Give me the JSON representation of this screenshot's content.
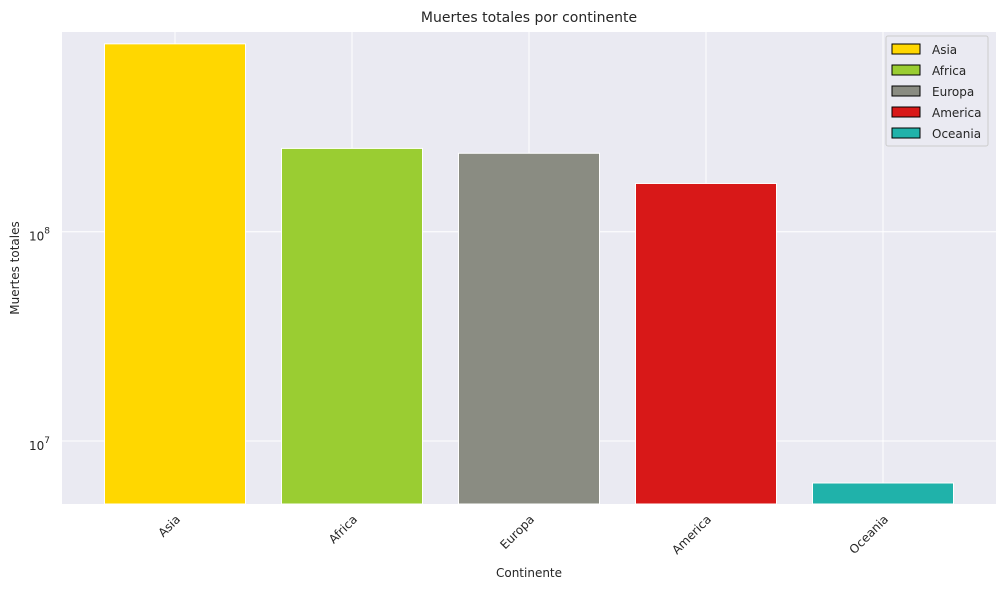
{
  "chart_data": {
    "type": "bar",
    "title": "Muertes totales por continente",
    "xlabel": "Continente",
    "ylabel": "Muertes totales",
    "y_scale": "log",
    "ylim": [
      5000000,
      900000000
    ],
    "categories": [
      "Asia",
      "Africa",
      "Europa",
      "America",
      "Oceania"
    ],
    "values": [
      790000000,
      250000000,
      237000000,
      170000000,
      6300000
    ],
    "colors": [
      "#FFD700",
      "#9ACD32",
      "#8A8C82",
      "#D81818",
      "#20B2AA"
    ],
    "y_ticks": [
      {
        "value": 10000000,
        "base": "10",
        "exp": "7"
      },
      {
        "value": 100000000,
        "base": "10",
        "exp": "8"
      }
    ],
    "legend": {
      "position": "top-right",
      "entries": [
        "Asia",
        "Africa",
        "Europa",
        "America",
        "Oceania"
      ]
    },
    "grid": true,
    "background": "#EAEAF2"
  }
}
